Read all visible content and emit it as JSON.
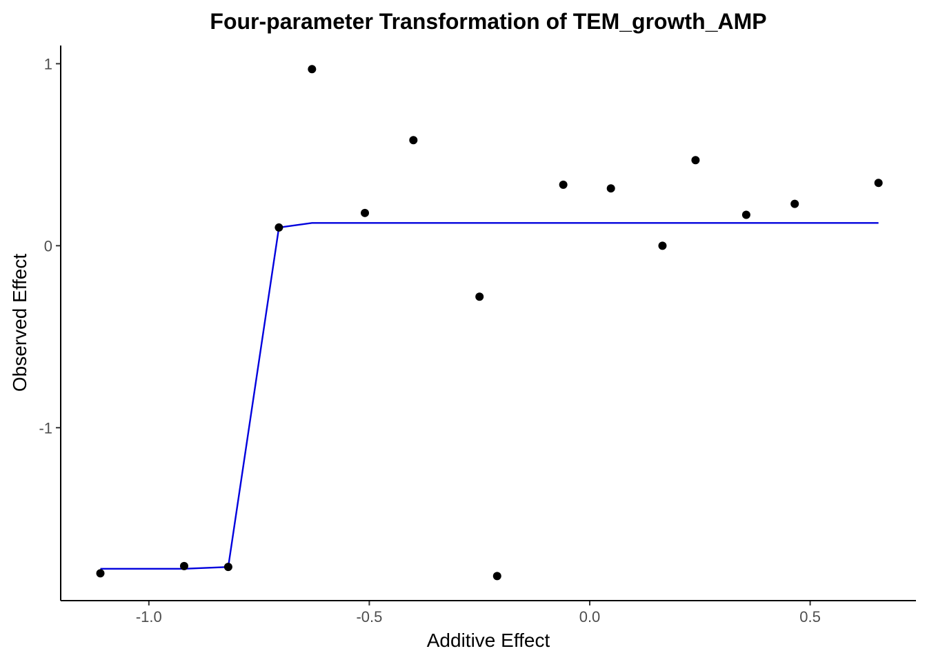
{
  "chart_data": {
    "type": "scatter",
    "title": "Four-parameter Transformation of TEM_growth_AMP",
    "xlabel": "Additive Effect",
    "ylabel": "Observed Effect",
    "xlim": [
      -1.2,
      0.74
    ],
    "ylim": [
      -1.95,
      1.1
    ],
    "x_ticks": [
      -1.0,
      -0.5,
      0.0,
      0.5
    ],
    "x_tick_labels": [
      "-1.0",
      "-0.5",
      "0.0",
      "0.5"
    ],
    "y_ticks": [
      -1,
      0,
      1
    ],
    "y_tick_labels": [
      "-1",
      "0",
      "1"
    ],
    "grid": false,
    "legend": "none",
    "point_color": "#000000",
    "line_color": "#0000dd",
    "points": [
      {
        "x": -1.11,
        "y": -1.8
      },
      {
        "x": -0.92,
        "y": -1.76
      },
      {
        "x": -0.82,
        "y": -1.765
      },
      {
        "x": -0.705,
        "y": 0.1
      },
      {
        "x": -0.63,
        "y": 0.97
      },
      {
        "x": -0.51,
        "y": 0.18
      },
      {
        "x": -0.4,
        "y": 0.58
      },
      {
        "x": -0.25,
        "y": -0.28
      },
      {
        "x": -0.21,
        "y": -1.815
      },
      {
        "x": -0.06,
        "y": 0.335
      },
      {
        "x": 0.048,
        "y": 0.315
      },
      {
        "x": 0.165,
        "y": 0.0
      },
      {
        "x": 0.24,
        "y": 0.47
      },
      {
        "x": 0.355,
        "y": 0.17
      },
      {
        "x": 0.465,
        "y": 0.23
      },
      {
        "x": 0.655,
        "y": 0.345
      }
    ],
    "fit_line": [
      {
        "x": -1.11,
        "y": -1.775
      },
      {
        "x": -0.92,
        "y": -1.775
      },
      {
        "x": -0.82,
        "y": -1.765
      },
      {
        "x": -0.705,
        "y": 0.1
      },
      {
        "x": -0.63,
        "y": 0.125
      },
      {
        "x": 0.655,
        "y": 0.125
      }
    ]
  }
}
